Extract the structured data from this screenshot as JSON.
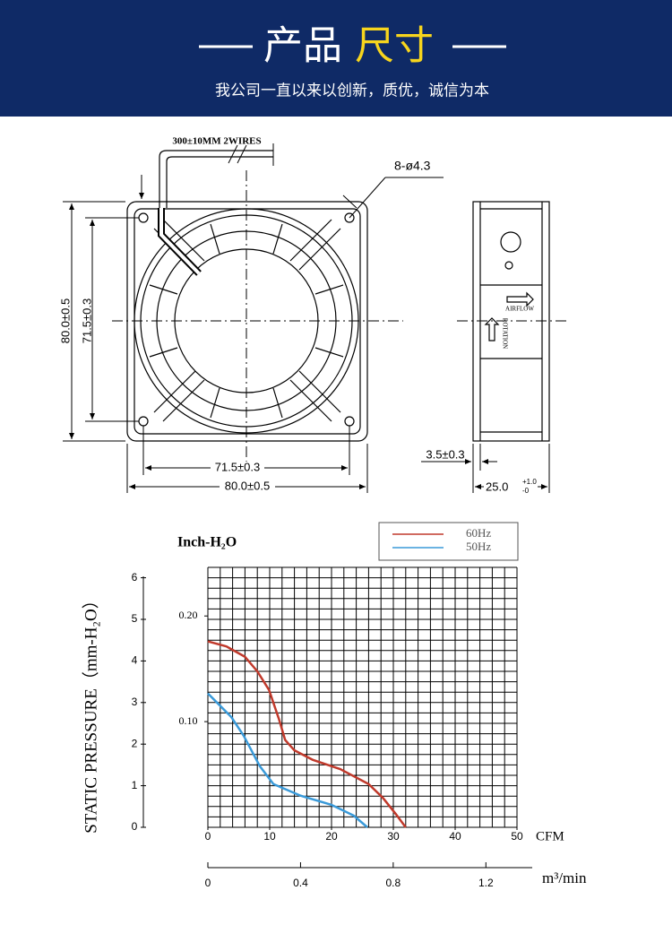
{
  "header": {
    "title_white": "产品",
    "title_yellow": "尺寸",
    "subtitle": "我公司一直以来以创新，质优，诚信为本"
  },
  "drawing": {
    "wires": "300±10MM 2WIRES",
    "holes": "8-ø4.3",
    "height_outer": "80.0±0.5",
    "height_inner": "71.5±0.3",
    "width_inner": "71.5±0.3",
    "width_outer": "80.0±0.5",
    "flange": "3.5±0.3",
    "depth": "25.0",
    "depth_plus": "+1.0",
    "depth_minus": "-0",
    "airflow": "AIRFLOW",
    "rotation": "ROTATION"
  },
  "chart_data": {
    "type": "line",
    "y_label": "STATIC PRESSURE（mm-H₂O）",
    "y2_label": "Inch-H₂O",
    "x_label": "CFM",
    "x2_label": "m³/min",
    "xlim": [
      0,
      50
    ],
    "xticks": [
      0,
      10,
      20,
      30,
      40,
      50
    ],
    "ylim": [
      0,
      6.25
    ],
    "yticks": [
      0,
      1,
      2,
      3,
      4,
      5,
      6
    ],
    "y2lim": [
      0,
      0.246
    ],
    "y2ticks": [
      {
        "value": 0.1,
        "label": "0.10"
      },
      {
        "value": 0.2,
        "label": "0.20"
      }
    ],
    "x2lim": [
      0,
      1.4
    ],
    "x2ticks": [
      0,
      0.4,
      0.8,
      1.2
    ],
    "grid": true,
    "series": [
      {
        "name": "60Hz",
        "color": "#c0392b",
        "x": [
          0,
          3,
          6,
          8,
          9.9,
          11.5,
          12.5,
          14,
          17,
          21.4,
          26,
          28.3,
          30.5,
          32
        ],
        "values": [
          4.47,
          4.35,
          4.1,
          3.75,
          3.3,
          2.6,
          2.1,
          1.85,
          1.62,
          1.4,
          1.04,
          0.71,
          0.3,
          0
        ]
      },
      {
        "name": "50Hz",
        "color": "#3a9ad9",
        "x": [
          0,
          3.8,
          5.8,
          8.4,
          10.6,
          15,
          20,
          23.6,
          25.8
        ],
        "values": [
          3.22,
          2.65,
          2.2,
          1.47,
          1.04,
          0.76,
          0.54,
          0.28,
          0
        ]
      }
    ]
  }
}
